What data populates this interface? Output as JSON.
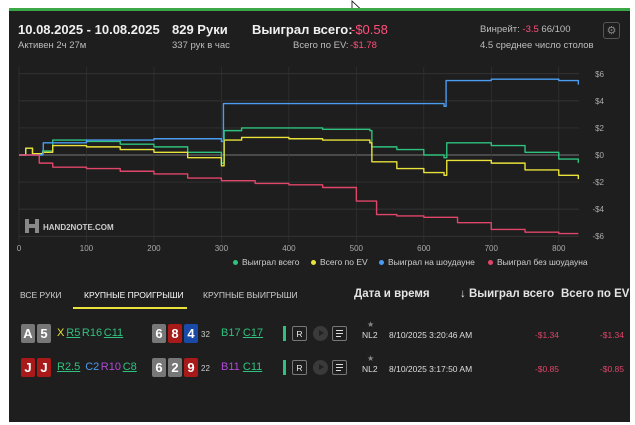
{
  "header": {
    "date_range": "10.08.2025 - 10.08.2025",
    "active": "Активен 2ч 27м",
    "hands": "829 Руки",
    "hands_per_hour": "337 рук в час",
    "won_total_label": "Выиграл всего:",
    "won_total_value": "-$0.58",
    "ev_label": "Всего по EV:",
    "ev_value": "-$1.78",
    "winrate_label": "Винрейт:",
    "winrate_value": "-3.5",
    "winrate_suffix": "66/100",
    "avg_tables": "4.5 среднее число столов",
    "settings_icon": "gear-icon"
  },
  "chart_data": {
    "type": "line",
    "x_ticks": [
      "0",
      "100",
      "200",
      "300",
      "400",
      "500",
      "600",
      "700",
      "800"
    ],
    "y_ticks": [
      "$6",
      "$4",
      "$2",
      "$0",
      "-$2",
      "-$4",
      "-$6"
    ],
    "xlim": [
      0,
      830
    ],
    "ylim": [
      -6.5,
      6.5
    ],
    "grid": true,
    "legend_position": "bottom-right",
    "logo": "HAND2NOTE.COM",
    "series": [
      {
        "name": "Выиграл всего",
        "color": "#2ec27e",
        "x": [
          0,
          10,
          20,
          35,
          50,
          100,
          150,
          200,
          250,
          300,
          304,
          330,
          400,
          450,
          500,
          520,
          523,
          560,
          600,
          630,
          634,
          700,
          750,
          800,
          829
        ],
        "y": [
          0,
          0.5,
          0.1,
          0.3,
          1.1,
          1.0,
          0.8,
          0.6,
          0.2,
          -0.6,
          1.8,
          2.0,
          2.0,
          1.9,
          1.9,
          1.8,
          0.6,
          0.4,
          0.0,
          -0.2,
          0.9,
          0.7,
          0.2,
          -0.3,
          -0.58
        ]
      },
      {
        "name": "Всего по EV",
        "color": "#e8e23a",
        "x": [
          0,
          10,
          20,
          35,
          50,
          100,
          150,
          200,
          250,
          300,
          304,
          330,
          400,
          450,
          500,
          520,
          523,
          560,
          600,
          630,
          634,
          700,
          750,
          800,
          829
        ],
        "y": [
          0,
          0.5,
          0.1,
          0.2,
          0.7,
          0.6,
          0.4,
          0.2,
          -0.2,
          -0.8,
          1.1,
          1.3,
          1.2,
          1.1,
          1.1,
          0.9,
          -0.5,
          -1.0,
          -1.3,
          -1.5,
          -0.4,
          -0.6,
          -1.1,
          -1.5,
          -1.78
        ]
      },
      {
        "name": "Выиграл на шоудауне",
        "color": "#4a9cf0",
        "x": [
          0,
          35,
          36,
          100,
          200,
          300,
          303,
          400,
          500,
          600,
          630,
          633,
          700,
          800,
          829
        ],
        "y": [
          0,
          0.1,
          0.9,
          1.1,
          1.2,
          1.0,
          3.8,
          3.8,
          3.8,
          3.8,
          3.6,
          5.5,
          5.6,
          5.5,
          5.2
        ]
      },
      {
        "name": "Выиграл без шоудауна",
        "color": "#e0456a",
        "x": [
          0,
          30,
          50,
          100,
          150,
          200,
          250,
          300,
          350,
          400,
          450,
          500,
          530,
          560,
          600,
          650,
          700,
          750,
          800,
          829
        ],
        "y": [
          0,
          -0.6,
          -0.9,
          -1.0,
          -1.2,
          -1.4,
          -1.7,
          -1.9,
          -2.1,
          -2.2,
          -2.4,
          -3.4,
          -4.4,
          -4.5,
          -4.6,
          -5.0,
          -5.5,
          -5.7,
          -5.8,
          -5.8
        ]
      }
    ]
  },
  "tabs": {
    "all": "ВСЕ РУКИ",
    "big_losses": "КРУПНЫЕ ПРОИГРЫШИ",
    "big_wins": "КРУПНЫЕ ВЫИГРЫШИ"
  },
  "columns": {
    "datetime": "Дата и время",
    "won": "↓ Выиграл всего",
    "ev": "Всего по EV"
  },
  "rows": [
    {
      "hole": [
        "A",
        "5"
      ],
      "actions": [
        {
          "t": "X",
          "c": "#e8e23a"
        },
        {
          "t": "R5",
          "c": "#2ec27e",
          "u": true
        },
        {
          "t": "R16",
          "c": "#2ec27e"
        },
        {
          "t": "C11",
          "c": "#2ec27e",
          "u": true
        }
      ],
      "board": [
        "6",
        "8",
        "4"
      ],
      "pot": "32",
      "river_actions": [
        {
          "t": "B17",
          "c": "#2ec27e"
        },
        {
          "t": "C17",
          "c": "#2ec27e",
          "u": true
        }
      ],
      "replay": "R",
      "limit": "NL2",
      "datetime": "8/10/2025 3:20:46 AM",
      "won": "-$1.34",
      "ev": "-$1.34"
    },
    {
      "hole": [
        "J",
        "J"
      ],
      "actions": [
        {
          "t": "R2.5",
          "c": "#2ec27e",
          "u": true
        },
        {
          "t": "C2",
          "c": "#4a9cf0"
        },
        {
          "t": "R10",
          "c": "#b04ad8"
        },
        {
          "t": "C8",
          "c": "#2ec27e",
          "u": true
        }
      ],
      "board": [
        "6",
        "2",
        "9"
      ],
      "pot": "22",
      "river_actions": [
        {
          "t": "B11",
          "c": "#b04ad8"
        },
        {
          "t": "C11",
          "c": "#2ec27e",
          "u": true
        }
      ],
      "replay": "R",
      "limit": "NL2",
      "datetime": "8/10/2025 3:17:50 AM",
      "won": "-$0.85",
      "ev": "-$0.85"
    }
  ]
}
